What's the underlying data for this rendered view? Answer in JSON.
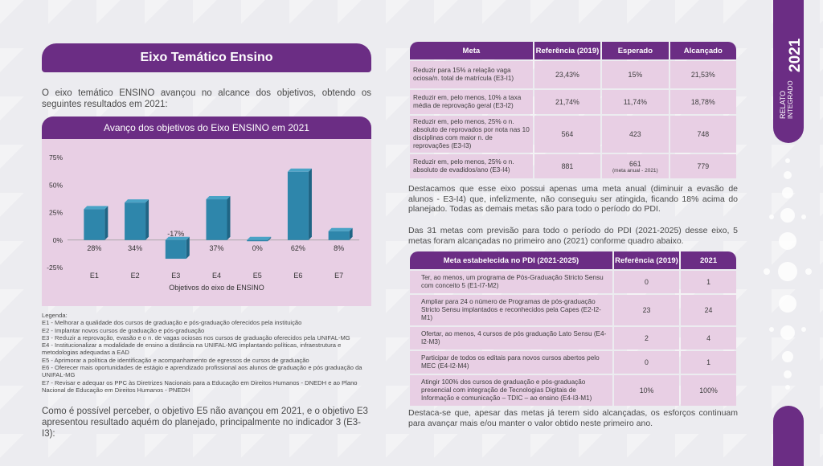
{
  "header": {
    "title": "Eixo Temático Ensino"
  },
  "intro": "O eixo temático ENSINO avançou no alcance dos objetivos, obtendo os seguintes resultados em 2021:",
  "chart_header": "Avanço dos objetivos do Eixo ENSINO em 2021",
  "chart_data": {
    "type": "bar",
    "title": "Avanço dos objetivos do Eixo ENSINO em 2021",
    "categories": [
      "E1",
      "E2",
      "E3",
      "E4",
      "E5",
      "E6",
      "E7"
    ],
    "values": [
      28,
      34,
      -17,
      37,
      0,
      62,
      8
    ],
    "value_labels": [
      "28%",
      "34%",
      "-17%",
      "37%",
      "0%",
      "62%",
      "8%"
    ],
    "xlabel": "Objetivos do eixo de ENSINO",
    "ylabel": "",
    "ylim": [
      -25,
      75
    ],
    "yticks": [
      "75%",
      "50%",
      "25%",
      "0%",
      "-25%"
    ],
    "ytick_values": [
      75,
      50,
      25,
      0,
      -25
    ],
    "grid": false,
    "bar_color": "#2e86ab"
  },
  "legend": {
    "title": "Legenda:",
    "items": [
      "E1 - Melhorar a qualidade dos cursos de graduação e pós-graduação oferecidos pela instituição",
      "E2 - Implantar novos cursos de graduação e pós-graduação",
      "E3 - Reduzir a reprovação, evasão e o n. de vagas ociosas nos cursos de graduação oferecidos pela UNIFAL-MG",
      "E4 - Institucionalizar a modalidade de ensino a distância na UNIFAL-MG implantando políticas, infraestrutura e metodologias adequadas a EAD",
      "E5 - Aprimorar a política de identificação e acompanhamento de egressos de cursos de graduação",
      "E6 - Oferecer mais oportunidades de estágio e aprendizado profissional aos alunos de graduação e pós graduação da UNIFAL-MG",
      "E7 - Revisar e adequar os PPC às Diretrizes Nacionais para a Educação em Direitos Humanos - DNEDH e ao Plano Nacional de Educação em Direitos Humanos - PNEDH"
    ]
  },
  "conclusion": "Como é possível perceber, o objetivo E5 não avançou em 2021, e o objetivo E3 apresentou resultado aquém do planejado, principalmente no indicador 3 (E3-I3):",
  "table1": {
    "headers": [
      "Meta",
      "Referência (2019)",
      "Esperado",
      "Alcançado"
    ],
    "rows": [
      {
        "meta": "Reduzir para 15% a relação vaga ociosa/n. total de matrícula (E3-I1)",
        "ref": "23,43%",
        "esp": "15%",
        "esp_note": "",
        "alc": "21,53%"
      },
      {
        "meta": "Reduzir em, pelo menos, 10% a taxa média de reprovação geral (E3-I2)",
        "ref": "21,74%",
        "esp": "11,74%",
        "esp_note": "",
        "alc": "18,78%"
      },
      {
        "meta": "Reduzir em, pelo menos, 25% o n. absoluto de reprovados por nota nas 10 disciplinas com maior n. de reprovações (E3-I3)",
        "ref": "564",
        "esp": "423",
        "esp_note": "",
        "alc": "748"
      },
      {
        "meta": "Reduzir em, pelo menos, 25% o n. absoluto de evadidos/ano (E3-I4)",
        "ref": "881",
        "esp": "661",
        "esp_note": "(meta anual - 2021)",
        "alc": "779"
      }
    ]
  },
  "para1": "Destacamos que esse eixo possui apenas uma meta anual (diminuir a evasão de alunos - E3-I4) que, infelizmente, não conseguiu ser atingida, ficando 18% acima do planejado. Todas as demais metas são para todo o período do PDI.",
  "para2": "Das 31 metas com previsão para todo o período do PDI (2021-2025) desse eixo, 5 metas foram alcançadas no primeiro ano (2021) conforme quadro abaixo.",
  "table2": {
    "headers": [
      "Meta estabelecida no PDI (2021-2025)",
      "Referência (2019)",
      "2021"
    ],
    "rows": [
      {
        "meta": "Ter, ao menos, um programa de Pós-Graduação Stricto Sensu com conceito 5 (E1-I7-M2)",
        "ref": "0",
        "val": "1"
      },
      {
        "meta": "Ampliar para 24 o número de Programas de pós-graduação Stricto Sensu implantados e reconhecidos pela Capes (E2-I2-M1)",
        "ref": "23",
        "val": "24"
      },
      {
        "meta": "Ofertar, ao menos, 4 cursos de pós graduação Lato Sensu (E4-I2-M3)",
        "ref": "2",
        "val": "4"
      },
      {
        "meta": "Participar de todos os editais para novos cursos abertos pelo MEC (E4-I2-M4)",
        "ref": "0",
        "val": "1"
      },
      {
        "meta": "Atingir 100% dos cursos de graduação e pós-graduação presencial com integração de Tecnologias Digitais de Informação e comunicação – TDIC – ao ensino (E4-I3-M1)",
        "ref": "10%",
        "val": "100%"
      }
    ]
  },
  "para3": "Destaca-se que, apesar das metas já terem sido alcançadas, os esforços continuam para avançar mais e/ou manter o valor obtido neste primeiro ano.",
  "side": {
    "line1": "RELATO",
    "line2": "INTEGRADO",
    "year": "2021"
  },
  "colors": {
    "purple": "#6b2d84",
    "pink": "#e8cfe4",
    "bar": "#2e86ab"
  }
}
